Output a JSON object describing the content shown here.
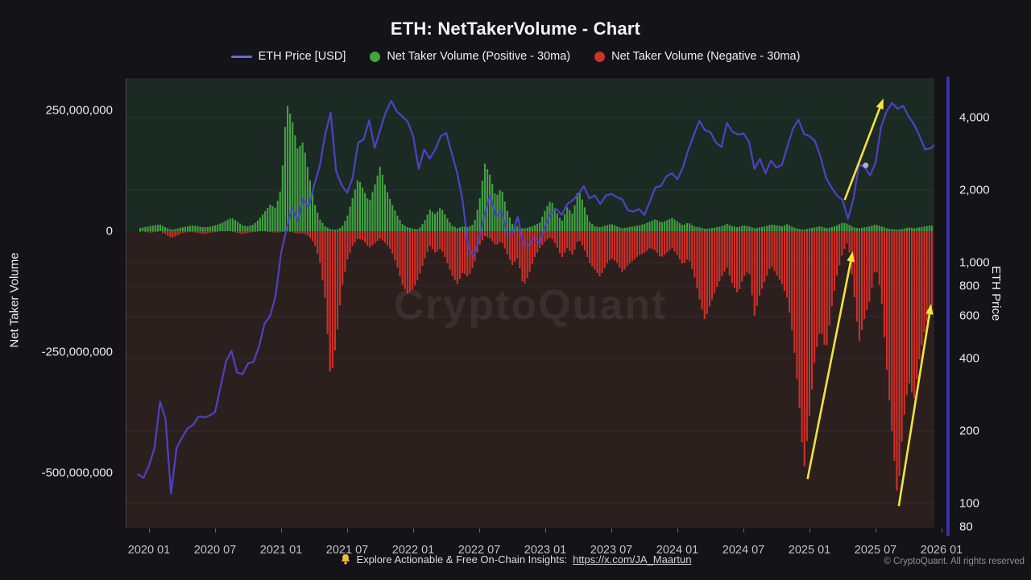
{
  "title": "ETH: NetTakerVolume - Chart",
  "legend": [
    {
      "label": "ETH Price [USD]",
      "marker": "line",
      "color": "#6f64dd"
    },
    {
      "label": "Net Taker Volume (Positive - 30ma)",
      "marker": "dot",
      "color": "#42a341"
    },
    {
      "label": "Net Taker Volume (Negative - 30ma)",
      "marker": "dot",
      "color": "#c9332c"
    }
  ],
  "watermark": "CryptoQuant",
  "footer": {
    "text": "Explore Actionable & Free On-Chain Insights:",
    "link": "https://x.com/JA_Maartun",
    "copyright": "© CryptoQuant. All rights reserved"
  },
  "colors": {
    "page_bg": "#131318",
    "positive_band_bg": "#1c2a24",
    "negative_band_bg": "#2c201f",
    "price_line": "#4e42c4",
    "positive_bars": "#42a341",
    "negative_bars": "#d02f28",
    "arrow": "#f5e33c",
    "right_axis_spine": "#3a31ad",
    "gridline": "rgba(255,255,255,0.05)",
    "marker_dot": "#b6a6e8"
  },
  "chart_data": {
    "type": "mixed",
    "title": "ETH: NetTakerVolume - Chart",
    "x_start_year": 2019.9167,
    "x_step_years": 0.0416667,
    "n_points": 146,
    "volume_unit": "USD millions (30-day moving average)",
    "series": [
      {
        "name": "Net Taker Volume (Positive - 30ma)",
        "type": "bar",
        "axis": "left",
        "values": [
          6,
          8,
          10,
          12,
          14,
          8,
          3,
          5,
          8,
          10,
          12,
          10,
          8,
          9,
          12,
          16,
          22,
          28,
          20,
          12,
          10,
          14,
          25,
          40,
          55,
          48,
          90,
          265,
          230,
          170,
          185,
          120,
          60,
          25,
          10,
          4,
          3,
          8,
          30,
          70,
          110,
          85,
          60,
          95,
          135,
          90,
          60,
          35,
          15,
          8,
          5,
          4,
          20,
          45,
          35,
          50,
          30,
          12,
          6,
          10,
          8,
          15,
          60,
          140,
          115,
          70,
          90,
          45,
          15,
          10,
          5,
          8,
          12,
          18,
          45,
          65,
          40,
          20,
          50,
          35,
          90,
          55,
          20,
          10,
          8,
          12,
          15,
          10,
          6,
          8,
          10,
          12,
          15,
          20,
          25,
          18,
          22,
          28,
          20,
          12,
          18,
          10,
          8,
          5,
          6,
          8,
          10,
          15,
          10,
          8,
          12,
          10,
          6,
          8,
          10,
          14,
          12,
          10,
          15,
          8,
          5,
          3,
          6,
          8,
          10,
          6,
          8,
          12,
          18,
          15,
          8,
          6,
          8,
          10,
          14,
          10,
          6,
          4,
          3,
          5,
          8,
          6,
          8,
          10,
          12,
          10
        ]
      },
      {
        "name": "Net Taker Volume (Negative - 30ma)",
        "type": "bar",
        "axis": "left",
        "values": [
          -2,
          -1,
          -3,
          -2,
          -1,
          -6,
          -14,
          -10,
          -4,
          -2,
          -2,
          -4,
          -6,
          -3,
          -2,
          -1,
          -1,
          -1,
          -3,
          -6,
          -3,
          -2,
          -1,
          -1,
          -2,
          -3,
          -2,
          -1,
          -2,
          -5,
          -4,
          -10,
          -25,
          -60,
          -140,
          -310,
          -230,
          -120,
          -60,
          -30,
          -15,
          -20,
          -35,
          -25,
          -15,
          -25,
          -40,
          -70,
          -110,
          -130,
          -120,
          -95,
          -60,
          -30,
          -45,
          -35,
          -60,
          -90,
          -110,
          -85,
          -95,
          -70,
          -30,
          -10,
          -15,
          -30,
          -20,
          -45,
          -70,
          -55,
          -115,
          -90,
          -55,
          -35,
          -20,
          -12,
          -30,
          -55,
          -35,
          -50,
          -15,
          -35,
          -65,
          -80,
          -95,
          -70,
          -55,
          -65,
          -85,
          -70,
          -60,
          -50,
          -45,
          -35,
          -40,
          -55,
          -45,
          -35,
          -50,
          -70,
          -55,
          -90,
          -140,
          -185,
          -150,
          -120,
          -95,
          -75,
          -110,
          -130,
          -95,
          -80,
          -175,
          -130,
          -100,
          -70,
          -90,
          -110,
          -140,
          -220,
          -340,
          -495,
          -380,
          -260,
          -200,
          -250,
          -160,
          -90,
          -45,
          -20,
          -120,
          -230,
          -180,
          -140,
          -70,
          -130,
          -280,
          -420,
          -555,
          -400,
          -310,
          -350,
          -260,
          -200,
          -160,
          -140
        ]
      },
      {
        "name": "ETH Price [USD]",
        "type": "line",
        "axis": "right",
        "values": [
          132,
          128,
          144,
          170,
          265,
          225,
          110,
          170,
          188,
          205,
          212,
          230,
          228,
          232,
          240,
          305,
          390,
          430,
          350,
          345,
          382,
          388,
          450,
          560,
          600,
          730,
          1100,
          1380,
          1700,
          1500,
          1850,
          1700,
          2100,
          2500,
          3400,
          4200,
          2400,
          2100,
          1950,
          2250,
          3150,
          3250,
          3900,
          3000,
          3550,
          4200,
          4700,
          4250,
          4050,
          3850,
          3350,
          2450,
          2950,
          2700,
          2950,
          3350,
          3450,
          2850,
          2350,
          1800,
          1150,
          1060,
          1250,
          1600,
          1900,
          1550,
          1650,
          1330,
          1310,
          1550,
          1200,
          1180,
          1270,
          1200,
          1420,
          1600,
          1670,
          1580,
          1750,
          1820,
          1920,
          2080,
          1850,
          1900,
          1750,
          1900,
          1930,
          1870,
          1830,
          1650,
          1630,
          1670,
          1580,
          1790,
          2050,
          2080,
          2280,
          2350,
          2220,
          2480,
          2950,
          3400,
          3880,
          3550,
          3480,
          3150,
          3020,
          3800,
          3500,
          3400,
          3440,
          3180,
          2450,
          2700,
          2350,
          2650,
          2480,
          2550,
          3050,
          3600,
          3920,
          3420,
          3350,
          3200,
          2750,
          2250,
          2050,
          1900,
          1820,
          1520,
          1850,
          2550,
          2500,
          2300,
          2600,
          3650,
          4250,
          4600,
          4350,
          4480,
          4050,
          3750,
          3350,
          2950,
          2980,
          3120
        ]
      }
    ],
    "left_axis": {
      "title": "Net Taker Volume",
      "tick_values_musd": [
        250,
        0,
        -250,
        -500
      ],
      "tick_labels": [
        "250,000,000",
        "0",
        "-250,000,000",
        "-500,000,000"
      ],
      "range_musd": [
        -613,
        317
      ]
    },
    "right_axis": {
      "title": "ETH Price",
      "scale": "log",
      "tick_values": [
        4000,
        2000,
        1000,
        800,
        600,
        400,
        200,
        100,
        80
      ],
      "tick_labels": [
        "4,000",
        "2,000",
        "1,000",
        "800",
        "600",
        "400",
        "200",
        "100",
        "80"
      ],
      "range": [
        80,
        5800
      ]
    },
    "x_axis": {
      "tick_years": [
        2020.0,
        2020.5,
        2021.0,
        2021.5,
        2022.0,
        2022.5,
        2023.0,
        2023.5,
        2024.0,
        2024.5,
        2025.0,
        2025.5,
        2026.0
      ],
      "tick_labels": [
        "2020 01",
        "2020 07",
        "2021 01",
        "2021 07",
        "2022 01",
        "2022 07",
        "2023 01",
        "2023 07",
        "2024 01",
        "2024 07",
        "2025 01",
        "2025 07",
        "2026 01"
      ]
    },
    "annotations": {
      "arrows_frac": [
        {
          "x1": 0.843,
          "y1": 0.892,
          "x2": 0.899,
          "y2": 0.385
        },
        {
          "x1": 0.956,
          "y1": 0.952,
          "x2": 0.996,
          "y2": 0.502
        },
        {
          "x1": 0.889,
          "y1": 0.271,
          "x2": 0.937,
          "y2": 0.045
        }
      ],
      "marker_dot_frac": {
        "x": 0.915,
        "y": 0.194
      }
    }
  }
}
